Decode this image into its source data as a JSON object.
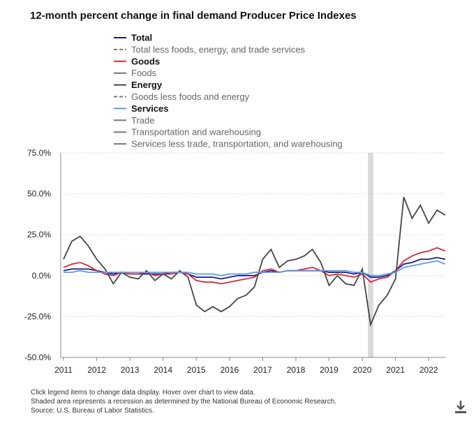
{
  "chart_data": {
    "type": "line",
    "title": "12-month percent change in final demand Producer Price Indexes",
    "x": [
      2011,
      2011.25,
      2011.5,
      2011.75,
      2012,
      2012.25,
      2012.5,
      2012.75,
      2013,
      2013.25,
      2013.5,
      2013.75,
      2014,
      2014.25,
      2014.5,
      2014.75,
      2015,
      2015.25,
      2015.5,
      2015.75,
      2016,
      2016.25,
      2016.5,
      2016.75,
      2017,
      2017.25,
      2017.5,
      2017.75,
      2018,
      2018.25,
      2018.5,
      2018.75,
      2019,
      2019.25,
      2019.5,
      2019.75,
      2020,
      2020.25,
      2020.5,
      2020.75,
      2021,
      2021.25,
      2021.5,
      2021.75,
      2022,
      2022.25,
      2022.5
    ],
    "series": [
      {
        "name": "Total",
        "color": "#1a1a8c",
        "visible": true,
        "values": [
          3,
          4,
          4,
          4,
          3,
          2,
          1,
          2,
          1,
          1,
          1,
          1,
          1,
          2,
          2,
          1,
          -1,
          -1,
          -1,
          -2,
          -1,
          0,
          0,
          0,
          2,
          3,
          2,
          3,
          3,
          3,
          3,
          3,
          2,
          2,
          2,
          1,
          2,
          -1,
          -1,
          0,
          3,
          7,
          8,
          10,
          10,
          11,
          10
        ]
      },
      {
        "name": "Total less foods, energy, and trade services",
        "color": "#777777",
        "dash": true,
        "visible": false
      },
      {
        "name": "Goods",
        "color": "#d62a36",
        "visible": true,
        "values": [
          5,
          7,
          8,
          6,
          3,
          1,
          0,
          2,
          1,
          1,
          2,
          0,
          1,
          1,
          2,
          1,
          -3,
          -4,
          -4,
          -5,
          -4,
          -3,
          -2,
          -1,
          3,
          4,
          2,
          3,
          3,
          4,
          5,
          3,
          0,
          1,
          0,
          -1,
          1,
          -4,
          -2,
          -1,
          3,
          9,
          12,
          14,
          15,
          17,
          15
        ]
      },
      {
        "name": "Foods",
        "color": "#777777",
        "visible": false
      },
      {
        "name": "Energy",
        "color": "#444444",
        "visible": true,
        "values": [
          10,
          21,
          24,
          18,
          10,
          4,
          -5,
          2,
          -1,
          -2,
          3,
          -3,
          1,
          -2,
          3,
          -1,
          -18,
          -22,
          -19,
          -22,
          -19,
          -14,
          -12,
          -7,
          10,
          16,
          5,
          9,
          10,
          12,
          16,
          8,
          -6,
          0,
          -5,
          -6,
          4,
          -30,
          -18,
          -12,
          -2,
          48,
          35,
          43,
          32,
          40,
          37
        ]
      },
      {
        "name": "Goods less foods and energy",
        "color": "#777777",
        "dash": true,
        "visible": false
      },
      {
        "name": "Services",
        "color": "#5b9bf0",
        "visible": true,
        "values": [
          2,
          2,
          3,
          2,
          2,
          2,
          2,
          2,
          2,
          2,
          2,
          2,
          2,
          2,
          2,
          2,
          1,
          1,
          1,
          0,
          1,
          1,
          1,
          2,
          2,
          2,
          2,
          3,
          3,
          3,
          3,
          3,
          3,
          3,
          3,
          2,
          2,
          0,
          0,
          1,
          2,
          5,
          6,
          7,
          8,
          9,
          7
        ]
      },
      {
        "name": "Trade",
        "color": "#777777",
        "visible": false
      },
      {
        "name": "Transportation and warehousing",
        "color": "#777777",
        "visible": false
      },
      {
        "name": "Services less trade, transportation, and warehousing",
        "color": "#777777",
        "visible": false
      }
    ],
    "xlim": [
      2011,
      2022.5
    ],
    "xticks": [
      2011,
      2012,
      2013,
      2014,
      2015,
      2016,
      2017,
      2018,
      2019,
      2020,
      2021,
      2022
    ],
    "ylim": [
      -50,
      75
    ],
    "yticks": [
      {
        "value": -50,
        "label": "-50.0%"
      },
      {
        "value": -25,
        "label": "-25.0%"
      },
      {
        "value": 0,
        "label": "0.0%"
      },
      {
        "value": 25,
        "label": "25.0%"
      },
      {
        "value": 50,
        "label": "50.0%"
      },
      {
        "value": 75,
        "label": "75.0%"
      }
    ],
    "grid": true,
    "recession": [
      2020.17,
      2020.33
    ],
    "notes": [
      "Click legend items to change data display. Hover over chart to view data.",
      "Shaded area represents a recession as determined by the National Bureau of Economic Research.",
      "Source: U.S. Bureau of Labor Statistics."
    ]
  }
}
